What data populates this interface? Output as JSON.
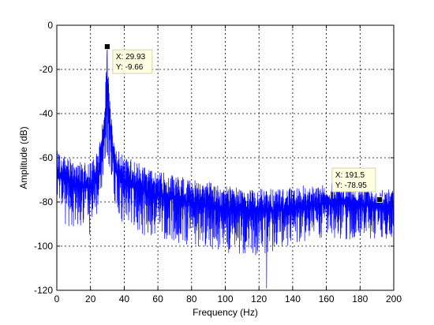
{
  "chart_data": {
    "type": "line",
    "title": "",
    "xlabel": "Frequency (Hz)",
    "ylabel": "Amplitude (dB)",
    "xlim": [
      0,
      200
    ],
    "ylim": [
      -120,
      0
    ],
    "x_ticks": [
      0,
      20,
      40,
      60,
      80,
      100,
      120,
      140,
      160,
      180,
      200
    ],
    "y_ticks": [
      0,
      -20,
      -40,
      -60,
      -80,
      -100,
      -120
    ],
    "x_tick_labels": [
      "0",
      "20",
      "40",
      "60",
      "80",
      "100",
      "120",
      "140",
      "160",
      "180",
      "200"
    ],
    "y_tick_labels": [
      "0",
      "-20",
      "-40",
      "-60",
      "-80",
      "-100",
      "-120"
    ],
    "grid": true,
    "line_color": "#0000ff",
    "series": [
      {
        "color": "#0000ff",
        "envelope": {
          "x": [
            0,
            10,
            20,
            25,
            28,
            29.93,
            32,
            35,
            40,
            50,
            60,
            80,
            100,
            120,
            140,
            160,
            180,
            190,
            200
          ],
          "top": [
            -57,
            -62,
            -62,
            -55,
            -40,
            -9.66,
            -38,
            -55,
            -60,
            -63,
            -67,
            -70,
            -73,
            -74,
            -74,
            -72,
            -73,
            -74,
            -75
          ],
          "bot": [
            -88,
            -93,
            -95,
            -88,
            -72,
            -60,
            -70,
            -85,
            -92,
            -95,
            -96,
            -100,
            -103,
            -104,
            -100,
            -97,
            -97,
            -97,
            -97
          ]
        },
        "deep_notches": [
          {
            "x": 11,
            "y": -88
          },
          {
            "x": 52,
            "y": -95
          },
          {
            "x": 84,
            "y": -100
          },
          {
            "x": 102,
            "y": -103
          },
          {
            "x": 118,
            "y": -104
          },
          {
            "x": 124.5,
            "y": -119
          },
          {
            "x": 134,
            "y": -98
          },
          {
            "x": 157,
            "y": -96
          }
        ]
      }
    ],
    "annotations": [
      {
        "x": 29.93,
        "y": -9.66,
        "x_text": "X: 29.93",
        "y_text": "Y: -9.66"
      },
      {
        "x": 191.5,
        "y": -78.95,
        "x_text": "X: 191.5",
        "y_text": "Y: -78.95"
      }
    ]
  }
}
